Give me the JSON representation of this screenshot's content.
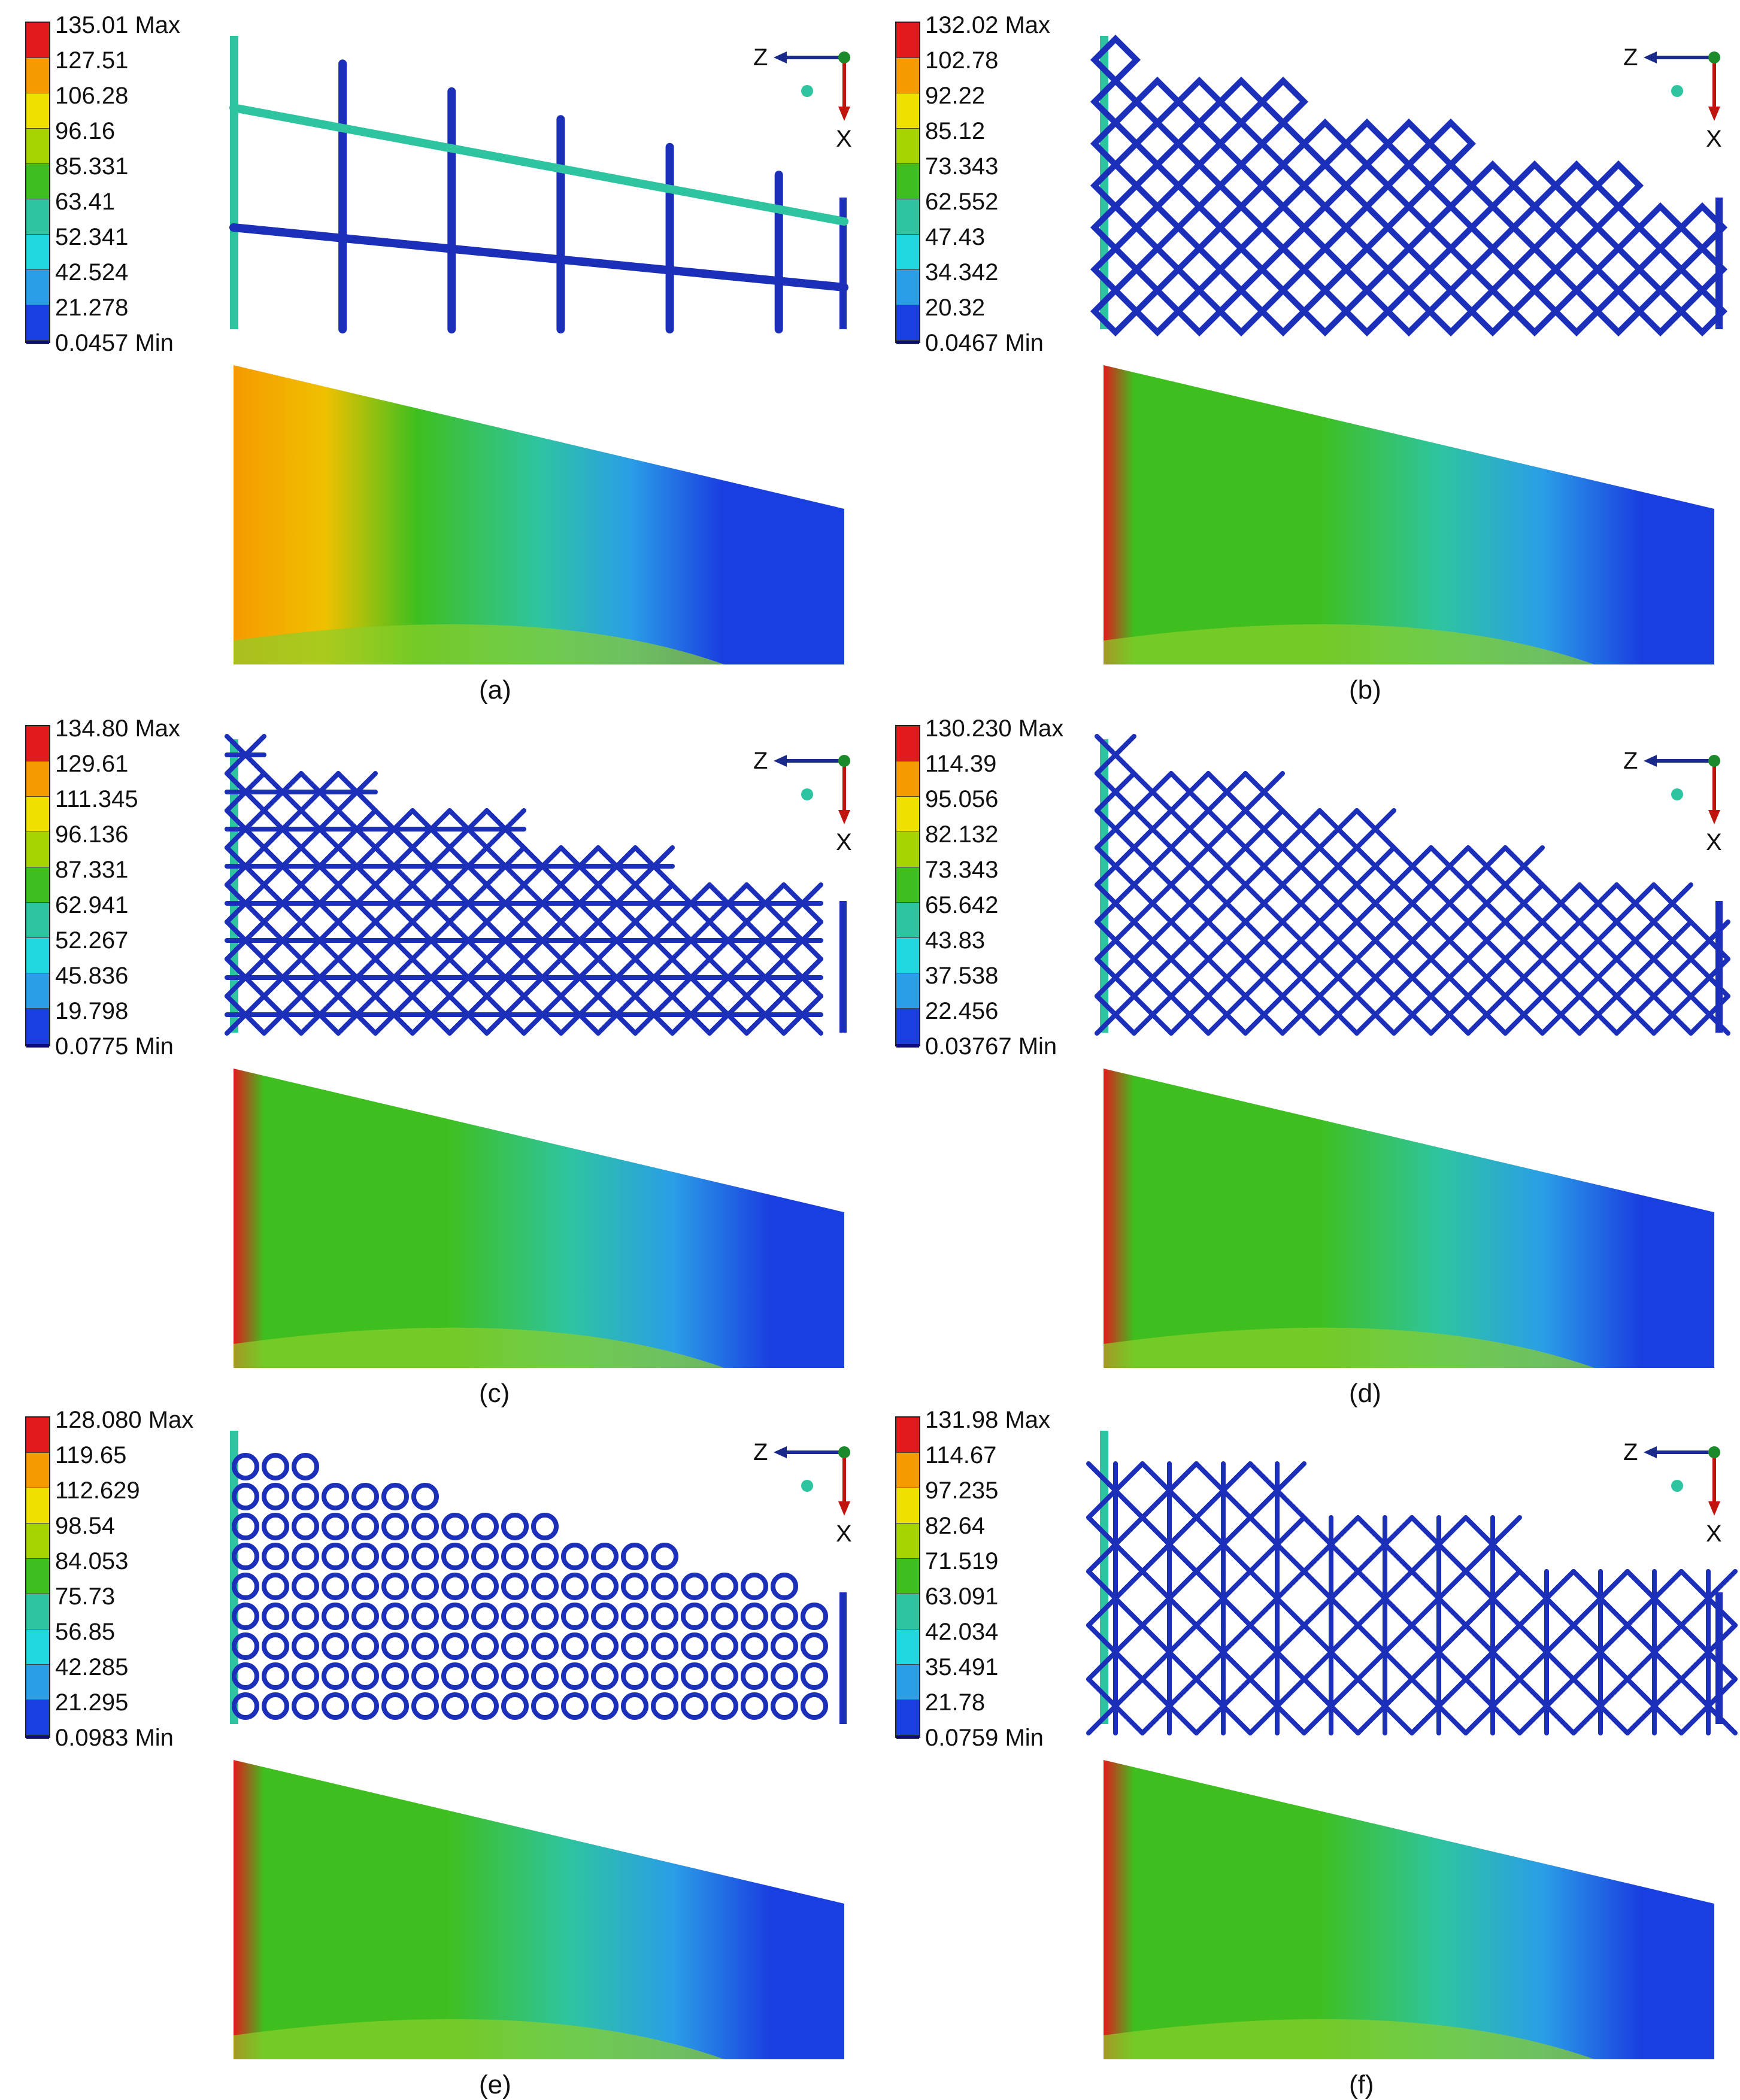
{
  "panels": [
    {
      "caption": "(a)",
      "legend": [
        "135.01 Max",
        "127.51",
        "106.28",
        "96.16",
        "85.331",
        "63.41",
        "52.341",
        "42.524",
        "21.278",
        "0.0457 Min"
      ],
      "lattice": "stringers"
    },
    {
      "caption": "(b)",
      "legend": [
        "132.02 Max",
        "102.78",
        "92.22",
        "85.12",
        "73.343",
        "62.552",
        "47.43",
        "34.342",
        "20.32",
        "0.0467  Min"
      ],
      "lattice": "diamond"
    },
    {
      "caption": "(c)",
      "legend": [
        "134.80 Max",
        "129.61",
        "111.345",
        "96.136",
        "87.331",
        "62.941",
        "52.267",
        "45.836",
        "19.798",
        "0.0775 Min"
      ],
      "lattice": "x-grid"
    },
    {
      "caption": "(d)",
      "legend": [
        "130.230 Max",
        "114.39",
        "95.056",
        "82.132",
        "73.343",
        "65.642",
        "43.83",
        "37.538",
        "22.456",
        "0.03767  Min"
      ],
      "lattice": "x-diagonal"
    },
    {
      "caption": "(e)",
      "legend": [
        "128.080 Max",
        "119.65",
        "112.629",
        "98.54",
        "84.053",
        "75.73",
        "56.85",
        "42.285",
        "21.295",
        "0.0983 Min"
      ],
      "lattice": "octagon"
    },
    {
      "caption": "(f)",
      "legend": [
        "131.98 Max",
        "114.67",
        "97.235",
        "82.64",
        "71.519",
        "63.091",
        "42.034",
        "35.491",
        "21.78",
        "0.0759  Min"
      ],
      "lattice": "star"
    }
  ],
  "axes": {
    "z_label": "Z",
    "x_label": "X"
  },
  "colors": {
    "scale": [
      "#e31a1c",
      "#f59a00",
      "#f0e000",
      "#a5d400",
      "#3fbf1f",
      "#2ec4a0",
      "#1fd8e0",
      "#2a9ee6",
      "#1a3fe0",
      "#0a0a7a"
    ],
    "z_axis": "#1a2a8a",
    "x_axis": "#c0140e",
    "origin": "#1a8a2a",
    "strut": "#1b2fb8"
  }
}
